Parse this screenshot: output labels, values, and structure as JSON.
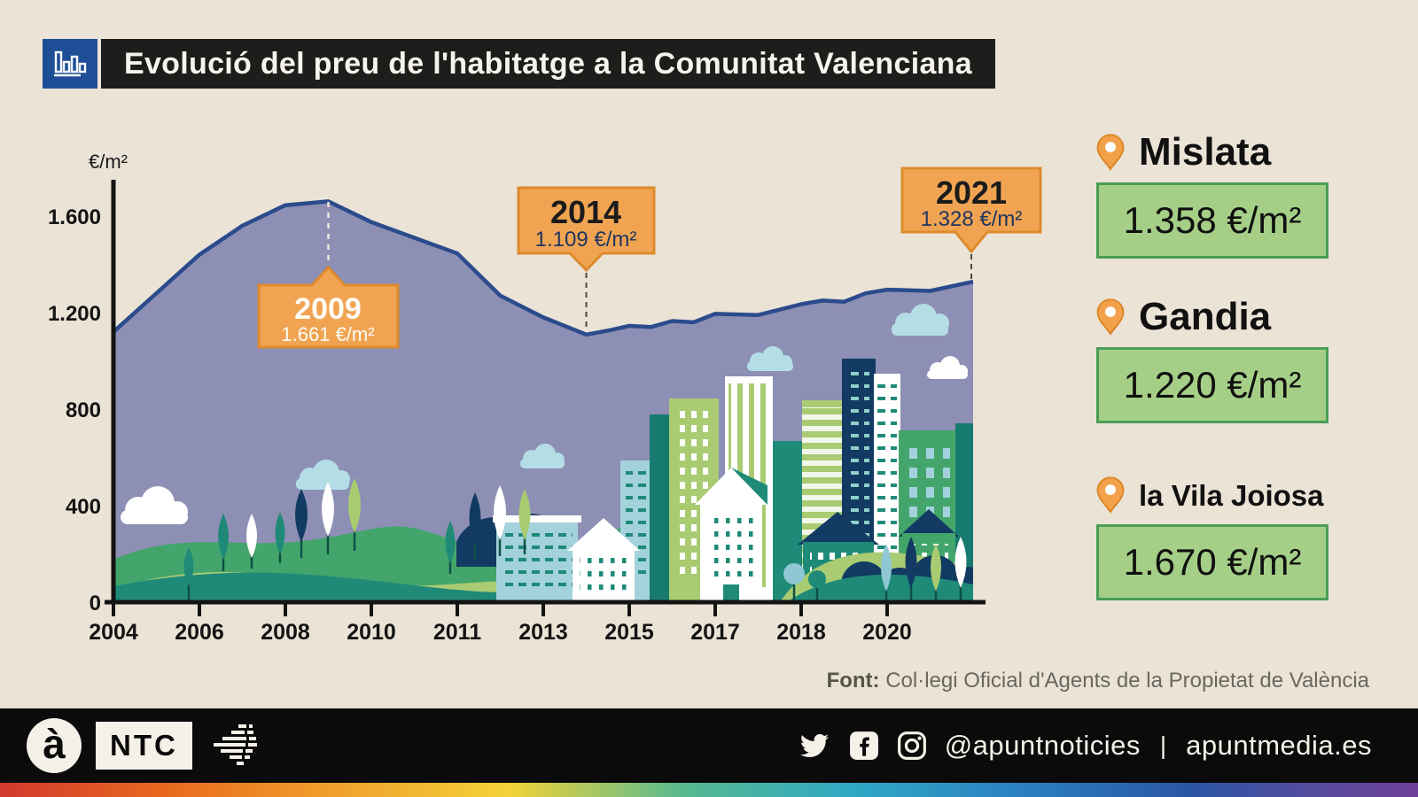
{
  "header": {
    "title": "Evolució del preu de l'habitatge a la Comunitat Valenciana",
    "icon": "bar-chart-icon"
  },
  "chart_data": {
    "type": "area",
    "title": "Evolució del preu de l'habitatge a la Comunitat Valenciana",
    "ylabel": "€/m²",
    "xlabel": "",
    "grid": false,
    "legend": "none",
    "area_color": "#8d8fb4",
    "line_color": "#2b4b8c",
    "ylim": [
      0,
      1780
    ],
    "x": [
      2004,
      2005,
      2006,
      2007,
      2008,
      2009,
      2010,
      2011,
      2012,
      2013,
      2014,
      2014.5,
      2015,
      2015.5,
      2016,
      2016.5,
      2017,
      2017.5,
      2018,
      2018.5,
      2019,
      2019.5,
      2020,
      2020.5,
      2021
    ],
    "values": [
      1120,
      1280,
      1440,
      1560,
      1645,
      1661,
      1575,
      1445,
      1270,
      1180,
      1109,
      1125,
      1145,
      1140,
      1165,
      1160,
      1195,
      1190,
      1235,
      1250,
      1245,
      1280,
      1295,
      1290,
      1328
    ],
    "x_ticks": [
      {
        "label": "2004",
        "year": 2004
      },
      {
        "label": "2006",
        "year": 2006
      },
      {
        "label": "2008",
        "year": 2008
      },
      {
        "label": "2010",
        "year": 2010
      },
      {
        "label": "2011",
        "year": 2011
      },
      {
        "label": "2013",
        "year": 2013
      },
      {
        "label": "2015",
        "year": 2015
      },
      {
        "label": "2017",
        "year": 2017
      },
      {
        "label": "2018",
        "year": 2018
      },
      {
        "label": "2020",
        "year": 2020
      }
    ],
    "y_ticks": [
      {
        "label": "0",
        "value": 0
      },
      {
        "label": "400",
        "value": 400
      },
      {
        "label": "800",
        "value": 800
      },
      {
        "label": "1.200",
        "value": 1200
      },
      {
        "label": "1.600",
        "value": 1600
      }
    ],
    "annotations": [
      {
        "year": "2009",
        "value": 1661,
        "value_label": "1.661 €/m²"
      },
      {
        "year": "2014",
        "value": 1109,
        "value_label": "1.109 €/m²"
      },
      {
        "year": "2021",
        "value": 1328,
        "value_label": "1.328 €/m²"
      }
    ],
    "callout_fill": "#f0a452",
    "callout_border": "#de8a2b"
  },
  "locations": [
    {
      "name": "Mislata",
      "price": "1.358 €/m²"
    },
    {
      "name": "Gandia",
      "price": "1.220 €/m²"
    },
    {
      "name": "la Vila Joiosa",
      "price": "1.670 €/m²"
    }
  ],
  "footer": {
    "source_label": "Font:",
    "source_text": "Col·legi Oficial d'Agents de la Propietat de València"
  },
  "bottom_bar": {
    "logo_text": "à",
    "ntc_label": "NTC",
    "social_handle": "@apuntnoticies",
    "separator": "|",
    "website": "apuntmedia.es"
  },
  "icons": [
    "bar-chart-icon",
    "map-pin-icon",
    "apunt-logo",
    "speed-lines-icon",
    "twitter-icon",
    "facebook-icon",
    "instagram-icon"
  ]
}
